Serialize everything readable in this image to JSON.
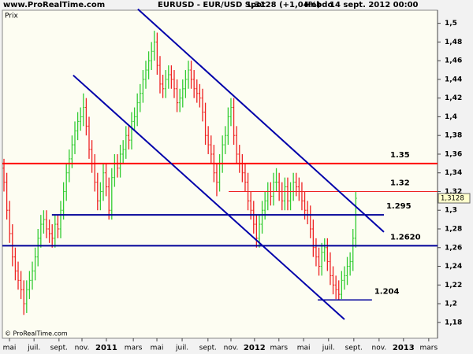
{
  "chart_data": {
    "type": "ohlc",
    "site": "www.ProRealTime.com",
    "instrument": "EURUSD - EUR/USD Spot",
    "quote": "1,3128 (+1,04%)",
    "period": "Hebdo",
    "date": "14 sept. 2012 00:00",
    "y_label": "Prix",
    "copyright": "© ProRealTime.com",
    "up_color": "#33cc33",
    "down_color": "#ee2222",
    "xlim": [
      -0.56,
      152.8
    ],
    "ylim": [
      1.163,
      1.514
    ],
    "xticks": [
      {
        "value": 1.94,
        "label": "mai"
      },
      {
        "value": 10.6,
        "label": "juil."
      },
      {
        "value": 19.4,
        "label": "sept."
      },
      {
        "value": 27.5,
        "label": "nov."
      },
      {
        "value": 36.1,
        "label": "2011"
      },
      {
        "value": 45.6,
        "label": "mars"
      },
      {
        "value": 53.9,
        "label": "mai"
      },
      {
        "value": 62.8,
        "label": "juil."
      },
      {
        "value": 71.9,
        "label": "sept."
      },
      {
        "value": 80,
        "label": "nov."
      },
      {
        "value": 88.3,
        "label": "2012"
      },
      {
        "value": 96.9,
        "label": "mars"
      },
      {
        "value": 105.6,
        "label": "mai"
      },
      {
        "value": 114.4,
        "label": "juil."
      },
      {
        "value": 123.3,
        "label": "sept."
      },
      {
        "value": 132.2,
        "label": "nov."
      },
      {
        "value": 140.8,
        "label": "2013"
      },
      {
        "value": 149.7,
        "label": "mars"
      }
    ],
    "yticks": [
      {
        "value": 1.18,
        "label": "1,18"
      },
      {
        "value": 1.2,
        "label": "1,2"
      },
      {
        "value": 1.22,
        "label": "1,22"
      },
      {
        "value": 1.24,
        "label": "1,24"
      },
      {
        "value": 1.26,
        "label": "1,26"
      },
      {
        "value": 1.28,
        "label": "1,28"
      },
      {
        "value": 1.3,
        "label": "1,3"
      },
      {
        "value": 1.32,
        "label": "1,32"
      },
      {
        "value": 1.34,
        "label": "1,34"
      },
      {
        "value": 1.36,
        "label": "1,36"
      },
      {
        "value": 1.38,
        "label": "1,38"
      },
      {
        "value": 1.4,
        "label": "1,4"
      },
      {
        "value": 1.42,
        "label": "1,42"
      },
      {
        "value": 1.44,
        "label": "1,44"
      },
      {
        "value": 1.46,
        "label": "1,46"
      },
      {
        "value": 1.48,
        "label": "1,48"
      },
      {
        "value": 1.5,
        "label": "1,5"
      }
    ],
    "last_price": {
      "value": 1.3128,
      "label": "1,3128"
    },
    "open": [
      1.345,
      1.33,
      1.3,
      1.275,
      1.25,
      1.235,
      1.225,
      1.215,
      1.2,
      1.215,
      1.225,
      1.235,
      1.25,
      1.27,
      1.285,
      1.29,
      1.28,
      1.275,
      1.27,
      1.285,
      1.28,
      1.3,
      1.32,
      1.34,
      1.355,
      1.37,
      1.385,
      1.395,
      1.4,
      1.41,
      1.39,
      1.365,
      1.35,
      1.33,
      1.31,
      1.32,
      1.34,
      1.325,
      1.3,
      1.335,
      1.35,
      1.345,
      1.36,
      1.365,
      1.38,
      1.375,
      1.395,
      1.4,
      1.415,
      1.425,
      1.44,
      1.45,
      1.46,
      1.47,
      1.48,
      1.455,
      1.435,
      1.43,
      1.44,
      1.445,
      1.44,
      1.43,
      1.415,
      1.42,
      1.43,
      1.44,
      1.45,
      1.44,
      1.43,
      1.425,
      1.42,
      1.405,
      1.38,
      1.37,
      1.36,
      1.34,
      1.33,
      1.35,
      1.37,
      1.38,
      1.4,
      1.41,
      1.38,
      1.36,
      1.35,
      1.34,
      1.33,
      1.31,
      1.3,
      1.285,
      1.27,
      1.285,
      1.3,
      1.31,
      1.32,
      1.315,
      1.33,
      1.33,
      1.32,
      1.31,
      1.325,
      1.31,
      1.32,
      1.33,
      1.325,
      1.32,
      1.31,
      1.3,
      1.295,
      1.28,
      1.26,
      1.25,
      1.24,
      1.255,
      1.26,
      1.245,
      1.23,
      1.22,
      1.215,
      1.21,
      1.225,
      1.23,
      1.24,
      1.245,
      1.27
    ],
    "high": [
      1.355,
      1.34,
      1.31,
      1.285,
      1.26,
      1.245,
      1.235,
      1.225,
      1.225,
      1.235,
      1.245,
      1.26,
      1.28,
      1.295,
      1.3,
      1.3,
      1.29,
      1.285,
      1.295,
      1.295,
      1.31,
      1.33,
      1.35,
      1.365,
      1.38,
      1.395,
      1.405,
      1.41,
      1.425,
      1.42,
      1.4,
      1.375,
      1.36,
      1.34,
      1.33,
      1.35,
      1.35,
      1.335,
      1.345,
      1.36,
      1.36,
      1.37,
      1.375,
      1.39,
      1.39,
      1.405,
      1.41,
      1.425,
      1.435,
      1.45,
      1.46,
      1.47,
      1.48,
      1.492,
      1.49,
      1.465,
      1.445,
      1.45,
      1.455,
      1.455,
      1.45,
      1.44,
      1.43,
      1.44,
      1.45,
      1.46,
      1.46,
      1.45,
      1.44,
      1.435,
      1.43,
      1.415,
      1.39,
      1.38,
      1.37,
      1.35,
      1.36,
      1.38,
      1.39,
      1.41,
      1.42,
      1.42,
      1.39,
      1.37,
      1.36,
      1.35,
      1.34,
      1.32,
      1.31,
      1.295,
      1.295,
      1.31,
      1.32,
      1.33,
      1.33,
      1.34,
      1.345,
      1.34,
      1.33,
      1.335,
      1.335,
      1.33,
      1.34,
      1.34,
      1.335,
      1.33,
      1.32,
      1.31,
      1.305,
      1.29,
      1.27,
      1.26,
      1.265,
      1.27,
      1.27,
      1.255,
      1.24,
      1.23,
      1.225,
      1.235,
      1.24,
      1.25,
      1.255,
      1.28,
      1.32
    ],
    "low": [
      1.32,
      1.29,
      1.265,
      1.24,
      1.225,
      1.215,
      1.205,
      1.188,
      1.19,
      1.205,
      1.215,
      1.225,
      1.24,
      1.26,
      1.275,
      1.27,
      1.265,
      1.26,
      1.26,
      1.27,
      1.27,
      1.29,
      1.31,
      1.33,
      1.345,
      1.36,
      1.375,
      1.385,
      1.39,
      1.38,
      1.355,
      1.34,
      1.32,
      1.3,
      1.3,
      1.31,
      1.315,
      1.29,
      1.29,
      1.325,
      1.335,
      1.335,
      1.35,
      1.355,
      1.365,
      1.365,
      1.385,
      1.39,
      1.405,
      1.415,
      1.43,
      1.44,
      1.45,
      1.46,
      1.445,
      1.425,
      1.42,
      1.42,
      1.43,
      1.43,
      1.42,
      1.405,
      1.405,
      1.41,
      1.42,
      1.43,
      1.43,
      1.42,
      1.415,
      1.41,
      1.395,
      1.37,
      1.36,
      1.35,
      1.33,
      1.315,
      1.32,
      1.34,
      1.36,
      1.37,
      1.39,
      1.37,
      1.35,
      1.34,
      1.33,
      1.32,
      1.3,
      1.29,
      1.275,
      1.26,
      1.26,
      1.275,
      1.29,
      1.3,
      1.305,
      1.305,
      1.32,
      1.31,
      1.3,
      1.3,
      1.3,
      1.3,
      1.31,
      1.315,
      1.31,
      1.3,
      1.29,
      1.285,
      1.27,
      1.25,
      1.24,
      1.23,
      1.23,
      1.245,
      1.235,
      1.22,
      1.21,
      1.205,
      1.204,
      1.205,
      1.215,
      1.22,
      1.23,
      1.235,
      1.26
    ],
    "close": [
      1.33,
      1.3,
      1.275,
      1.25,
      1.235,
      1.225,
      1.215,
      1.2,
      1.215,
      1.225,
      1.235,
      1.25,
      1.27,
      1.285,
      1.29,
      1.28,
      1.275,
      1.27,
      1.285,
      1.28,
      1.3,
      1.32,
      1.34,
      1.355,
      1.37,
      1.385,
      1.395,
      1.4,
      1.41,
      1.39,
      1.365,
      1.35,
      1.33,
      1.31,
      1.32,
      1.34,
      1.325,
      1.3,
      1.335,
      1.35,
      1.345,
      1.36,
      1.365,
      1.38,
      1.375,
      1.395,
      1.4,
      1.415,
      1.425,
      1.44,
      1.45,
      1.46,
      1.47,
      1.48,
      1.455,
      1.435,
      1.43,
      1.44,
      1.445,
      1.44,
      1.43,
      1.415,
      1.42,
      1.43,
      1.44,
      1.45,
      1.44,
      1.43,
      1.425,
      1.42,
      1.405,
      1.38,
      1.37,
      1.36,
      1.34,
      1.33,
      1.35,
      1.37,
      1.38,
      1.4,
      1.41,
      1.38,
      1.36,
      1.35,
      1.34,
      1.33,
      1.31,
      1.3,
      1.285,
      1.27,
      1.285,
      1.3,
      1.31,
      1.32,
      1.315,
      1.33,
      1.33,
      1.32,
      1.31,
      1.325,
      1.31,
      1.32,
      1.33,
      1.325,
      1.32,
      1.31,
      1.3,
      1.295,
      1.28,
      1.26,
      1.25,
      1.24,
      1.255,
      1.26,
      1.245,
      1.23,
      1.22,
      1.215,
      1.21,
      1.225,
      1.23,
      1.24,
      1.245,
      1.27,
      1.3128
    ],
    "levels": [
      {
        "value": 1.35,
        "label": "1.35",
        "color": "#ff0000",
        "width": 2,
        "x_range": [
          -0.56,
          152.8
        ]
      },
      {
        "value": 1.32,
        "label": "1.32",
        "color": "#ee2222",
        "width": 1,
        "x_range": [
          79.2,
          152.8
        ]
      },
      {
        "value": 1.295,
        "label": "1.295",
        "color": "#000099",
        "width": 2,
        "x_range": [
          16.9,
          133.9
        ]
      },
      {
        "value": 1.262,
        "label": "1.2620",
        "color": "#000099",
        "width": 2,
        "x_range": [
          -0.56,
          152.8
        ]
      },
      {
        "value": 1.204,
        "label": "1.204",
        "color": "#000099",
        "width": 1.5,
        "x_range": [
          110.6,
          129.7
        ]
      }
    ],
    "trendlines": [
      {
        "color": "#0000aa",
        "points": [
          [
            47.2,
            1.5152
          ],
          [
            133.9,
            1.2767
          ]
        ]
      },
      {
        "color": "#0000aa",
        "points": [
          [
            24.4,
            1.4444
          ],
          [
            120,
            1.1832
          ]
        ]
      }
    ]
  }
}
